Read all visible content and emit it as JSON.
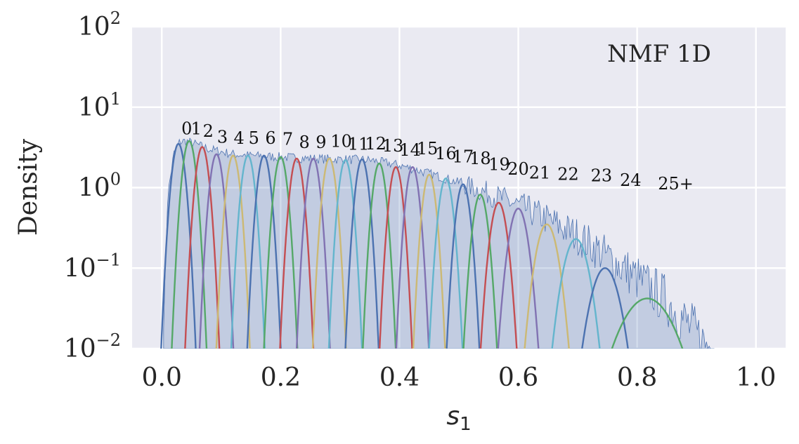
{
  "chart_data": {
    "type": "area",
    "title": "",
    "annotation": "NMF 1D",
    "xlabel_symbol": "s",
    "xlabel_subscript": "1",
    "ylabel": "Density",
    "yscale": "log",
    "xlim": [
      -0.05,
      1.05
    ],
    "ylim": [
      0.01,
      100
    ],
    "x_ticks": [
      {
        "value": 0.0,
        "label": "0.0"
      },
      {
        "value": 0.2,
        "label": "0.2"
      },
      {
        "value": 0.4,
        "label": "0.4"
      },
      {
        "value": 0.6,
        "label": "0.6"
      },
      {
        "value": 0.8,
        "label": "0.8"
      },
      {
        "value": 1.0,
        "label": "1.0"
      }
    ],
    "y_ticks": [
      {
        "value": 0.01,
        "base": "10",
        "exp": "−2"
      },
      {
        "value": 0.1,
        "base": "10",
        "exp": "−1"
      },
      {
        "value": 1,
        "base": "10",
        "exp": "0"
      },
      {
        "value": 10,
        "base": "10",
        "exp": "1"
      },
      {
        "value": 100,
        "base": "10",
        "exp": "2"
      }
    ],
    "grid": true,
    "palette": [
      "#4c72b0",
      "#55a868",
      "#c44e52",
      "#8172b2",
      "#ccb974",
      "#64b5cd"
    ],
    "histogram_color": "#4c72b0",
    "histogram_envelope": [
      [
        0.003,
        0.02
      ],
      [
        0.01,
        0.8
      ],
      [
        0.02,
        2.6
      ],
      [
        0.03,
        3.7
      ],
      [
        0.04,
        3.8
      ],
      [
        0.06,
        3.4
      ],
      [
        0.08,
        3.0
      ],
      [
        0.1,
        2.8
      ],
      [
        0.12,
        2.6
      ],
      [
        0.15,
        2.5
      ],
      [
        0.2,
        2.4
      ],
      [
        0.25,
        2.3
      ],
      [
        0.3,
        2.25
      ],
      [
        0.35,
        2.2
      ],
      [
        0.4,
        1.9
      ],
      [
        0.45,
        1.5
      ],
      [
        0.5,
        1.15
      ],
      [
        0.55,
        0.85
      ],
      [
        0.6,
        0.6
      ],
      [
        0.65,
        0.4
      ],
      [
        0.7,
        0.25
      ],
      [
        0.75,
        0.14
      ],
      [
        0.8,
        0.075
      ],
      [
        0.85,
        0.04
      ],
      [
        0.88,
        0.022
      ],
      [
        0.91,
        0.012
      ],
      [
        0.93,
        0.01
      ]
    ],
    "components": [
      {
        "label": "0",
        "mu": 0.028,
        "sigma": 0.0085,
        "peak": 3.5,
        "label_x": 0.042,
        "label_y": 4.6
      },
      {
        "label": "1",
        "mu": 0.046,
        "sigma": 0.0085,
        "peak": 3.8,
        "label_x": 0.058,
        "label_y": 4.6
      },
      {
        "label": "2",
        "mu": 0.068,
        "sigma": 0.0085,
        "peak": 3.2,
        "label_x": 0.078,
        "label_y": 4.3
      },
      {
        "label": "3",
        "mu": 0.092,
        "sigma": 0.0085,
        "peak": 2.6,
        "label_x": 0.102,
        "label_y": 3.6
      },
      {
        "label": "4",
        "mu": 0.12,
        "sigma": 0.0085,
        "peak": 2.5,
        "label_x": 0.13,
        "label_y": 3.5
      },
      {
        "label": "5",
        "mu": 0.145,
        "sigma": 0.0085,
        "peak": 2.5,
        "label_x": 0.155,
        "label_y": 3.5
      },
      {
        "label": "6",
        "mu": 0.172,
        "sigma": 0.0085,
        "peak": 2.5,
        "label_x": 0.183,
        "label_y": 3.5
      },
      {
        "label": "7",
        "mu": 0.2,
        "sigma": 0.0085,
        "peak": 2.4,
        "label_x": 0.212,
        "label_y": 3.4
      },
      {
        "label": "8",
        "mu": 0.227,
        "sigma": 0.0085,
        "peak": 2.3,
        "label_x": 0.24,
        "label_y": 3.1
      },
      {
        "label": "9",
        "mu": 0.255,
        "sigma": 0.0085,
        "peak": 2.3,
        "label_x": 0.268,
        "label_y": 3.1
      },
      {
        "label": "10",
        "mu": 0.282,
        "sigma": 0.0085,
        "peak": 2.3,
        "label_x": 0.302,
        "label_y": 3.2
      },
      {
        "label": "11",
        "mu": 0.309,
        "sigma": 0.0085,
        "peak": 2.2,
        "label_x": 0.331,
        "label_y": 2.95
      },
      {
        "label": "12",
        "mu": 0.337,
        "sigma": 0.0085,
        "peak": 2.25,
        "label_x": 0.36,
        "label_y": 3.0
      },
      {
        "label": "13",
        "mu": 0.366,
        "sigma": 0.0085,
        "peak": 2.0,
        "label_x": 0.389,
        "label_y": 2.8
      },
      {
        "label": "14",
        "mu": 0.394,
        "sigma": 0.0085,
        "peak": 1.8,
        "label_x": 0.418,
        "label_y": 2.5
      },
      {
        "label": "15",
        "mu": 0.422,
        "sigma": 0.0085,
        "peak": 1.8,
        "label_x": 0.447,
        "label_y": 2.6
      },
      {
        "label": "16",
        "mu": 0.45,
        "sigma": 0.0085,
        "peak": 1.45,
        "label_x": 0.478,
        "label_y": 2.25
      },
      {
        "label": "17",
        "mu": 0.478,
        "sigma": 0.009,
        "peak": 1.3,
        "label_x": 0.507,
        "label_y": 2.05
      },
      {
        "label": "18",
        "mu": 0.507,
        "sigma": 0.009,
        "peak": 1.1,
        "label_x": 0.536,
        "label_y": 1.95
      },
      {
        "label": "19",
        "mu": 0.536,
        "sigma": 0.0095,
        "peak": 0.82,
        "label_x": 0.568,
        "label_y": 1.65
      },
      {
        "label": "20",
        "mu": 0.567,
        "sigma": 0.0105,
        "peak": 0.65,
        "label_x": 0.6,
        "label_y": 1.45
      },
      {
        "label": "21",
        "mu": 0.6,
        "sigma": 0.012,
        "peak": 0.55,
        "label_x": 0.636,
        "label_y": 1.3
      },
      {
        "label": "22",
        "mu": 0.648,
        "sigma": 0.014,
        "peak": 0.35,
        "label_x": 0.684,
        "label_y": 1.25
      },
      {
        "label": "23",
        "mu": 0.697,
        "sigma": 0.016,
        "peak": 0.23,
        "label_x": 0.74,
        "label_y": 1.2
      },
      {
        "label": "24",
        "mu": 0.746,
        "sigma": 0.018,
        "peak": 0.1,
        "label_x": 0.789,
        "label_y": 1.05
      },
      {
        "label": "25+",
        "mu": 0.817,
        "sigma": 0.035,
        "peak": 0.042,
        "label_x": 0.865,
        "label_y": 0.95
      }
    ]
  }
}
